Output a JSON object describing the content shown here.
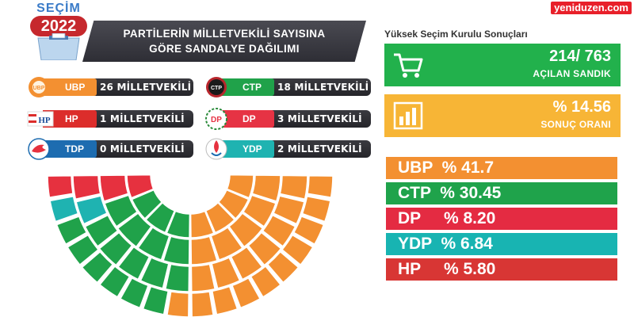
{
  "header": {
    "logo_word": "SEÇİM",
    "logo_year": "2022",
    "title_line1": "PARTİLERİN MİLLETVEKİLİ SAYISINA",
    "title_line2": "GÖRE SANDALYE DAĞILIMI"
  },
  "source": "yeniduzen.com",
  "parties": [
    {
      "abbr": "UBP",
      "seats_text": "26 MİLLETVEKİLİ",
      "seats": 26,
      "color": "#f39031",
      "icon": "ubp-sun-logo"
    },
    {
      "abbr": "CTP",
      "seats_text": "18 MİLLETVEKİLİ",
      "seats": 18,
      "color": "#20a24a",
      "icon": "ctp-star-logo"
    },
    {
      "abbr": "HP",
      "seats_text": "1 MİLLETVEKİLİ",
      "seats": 1,
      "color": "#dc2d2b",
      "icon": "hp-flag-logo"
    },
    {
      "abbr": "DP",
      "seats_text": "3 MİLLETVEKİLİ",
      "seats": 3,
      "color": "#e63344",
      "icon": "dp-wreath-logo"
    },
    {
      "abbr": "TDP",
      "seats_text": "0 MİLLETVEKİLİ",
      "seats": 0,
      "color": "#1d6cb0",
      "icon": "tdp-dove-logo"
    },
    {
      "abbr": "YDP",
      "seats_text": "2 MİLLETVEKİLİ",
      "seats": 2,
      "color": "#1fb3b1",
      "icon": "ydp-flame-logo"
    }
  ],
  "panel": {
    "title": "Yüksek Seçim Kurulu Sonuçları",
    "opened": {
      "value": "214/ 763",
      "label": "AÇILAN SANDIK",
      "color": "#22b14c",
      "icon": "cart-icon"
    },
    "rate": {
      "value": "% 14.56",
      "label": "SONUÇ ORANI",
      "color": "#f7b536",
      "icon": "bar-chart-icon"
    }
  },
  "results": [
    {
      "text": "UBP  % 41.7",
      "color": "#f39031"
    },
    {
      "text": "CTP  % 30.45",
      "color": "#1fa34b"
    },
    {
      "text": "DP     % 8.20",
      "color": "#e42b42"
    },
    {
      "text": "YDP  % 6.84",
      "color": "#18b4b2"
    },
    {
      "text": "HP     % 5.80",
      "color": "#d83634"
    }
  ],
  "parliament": {
    "seats": [
      {
        "abbr": "HP",
        "count": 1,
        "color": "#e6313f"
      },
      {
        "abbr": "DP",
        "count": 3,
        "color": "#e6313f"
      },
      {
        "abbr": "YDP",
        "count": 2,
        "color": "#1fb3b1"
      },
      {
        "abbr": "CTP",
        "count": 18,
        "color": "#20a24a"
      },
      {
        "abbr": "UBP",
        "count": 26,
        "color": "#f39031"
      }
    ]
  }
}
